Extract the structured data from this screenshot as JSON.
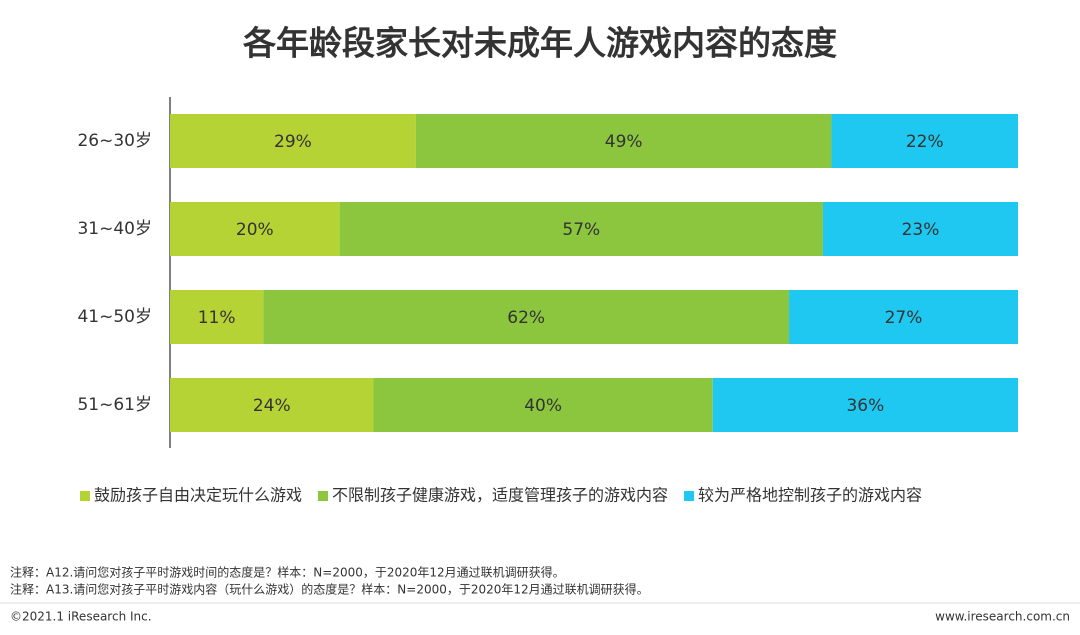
{
  "chart_data": {
    "type": "stacked-bar-horizontal",
    "title": "各年龄段家长对未成年人游戏内容的态度",
    "categories": [
      "26~30岁",
      "31~40岁",
      "41~50岁",
      "51~61岁"
    ],
    "series": [
      {
        "name": "鼓励孩子自由决定玩什么游戏",
        "color": "#b5d334",
        "values": [
          29,
          20,
          11,
          24
        ],
        "value_labels": [
          "29%",
          "20%",
          "11%",
          "24%"
        ]
      },
      {
        "name": "不限制孩子健康游戏，适度管理孩子的游戏内容",
        "color": "#8cc63f",
        "values": [
          49,
          57,
          62,
          40
        ],
        "value_labels": [
          "49%",
          "57%",
          "62%",
          "40%"
        ]
      },
      {
        "name": "较为严格地控制孩子的游戏内容",
        "color": "#1ec8f0",
        "values": [
          22,
          23,
          27,
          36
        ],
        "value_labels": [
          "22%",
          "23%",
          "27%",
          "36%"
        ]
      }
    ],
    "xlim": [
      0,
      100
    ],
    "notes": [
      "注释：A12.请问您对孩子平时游戏时间的态度是？样本：N=2000，于2020年12月通过联机调研获得。",
      "注释：A13.请问您对孩子平时游戏内容（玩什么游戏）的态度是？样本：N=2000，于2020年12月通过联机调研获得。"
    ],
    "copyright": "©2021.1 iResearch Inc.",
    "website": "www.iresearch.com.cn"
  }
}
